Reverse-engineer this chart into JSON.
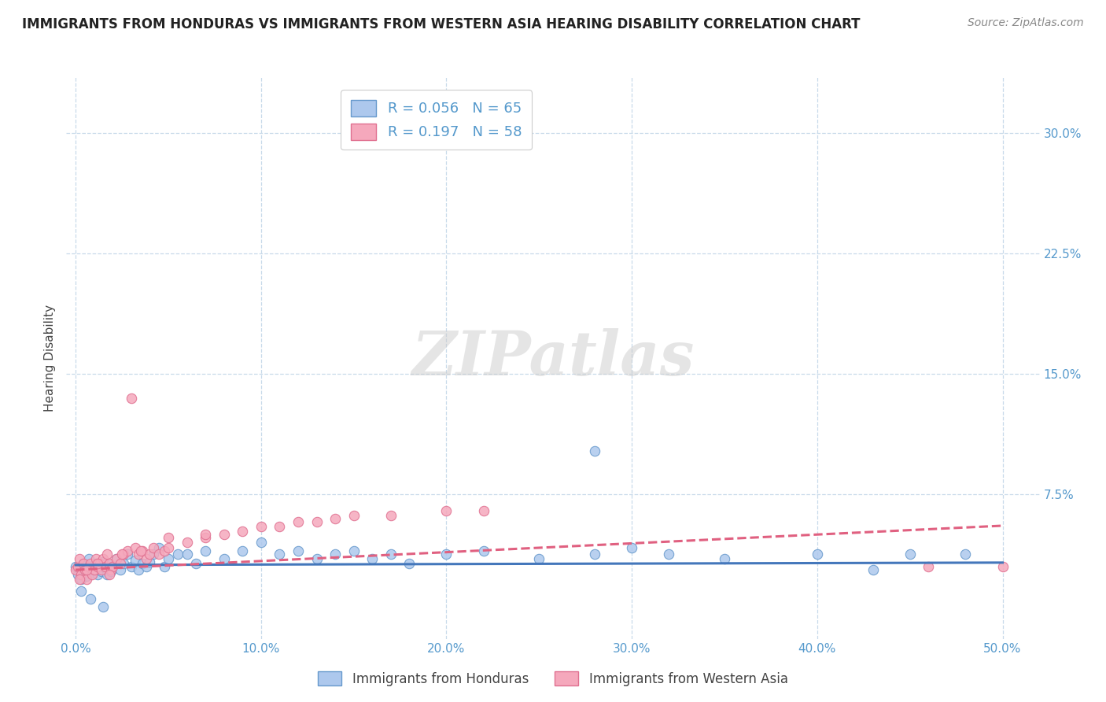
{
  "title": "IMMIGRANTS FROM HONDURAS VS IMMIGRANTS FROM WESTERN ASIA HEARING DISABILITY CORRELATION CHART",
  "source": "Source: ZipAtlas.com",
  "ylabel": "Hearing Disability",
  "x_ticks": [
    0.0,
    0.1,
    0.2,
    0.3,
    0.4,
    0.5
  ],
  "x_tick_labels": [
    "0.0%",
    "10.0%",
    "20.0%",
    "30.0%",
    "40.0%",
    "50.0%"
  ],
  "y_ticks": [
    0.0,
    0.075,
    0.15,
    0.225,
    0.3
  ],
  "y_tick_labels_right": [
    "",
    "7.5%",
    "15.0%",
    "22.5%",
    "30.0%"
  ],
  "xlim": [
    -0.005,
    0.52
  ],
  "ylim": [
    -0.015,
    0.335
  ],
  "series1_color": "#adc8ed",
  "series1_edge": "#6699cc",
  "series1_label": "Immigrants from Honduras",
  "series1_R": 0.056,
  "series1_N": 65,
  "series2_color": "#f5a8bc",
  "series2_edge": "#e07090",
  "series2_label": "Immigrants from Western Asia",
  "series2_R": 0.197,
  "series2_N": 58,
  "trend1_color": "#4477bb",
  "trend2_color": "#e06080",
  "watermark": "ZIPatlas",
  "background_color": "#ffffff",
  "grid_color": "#c8daea",
  "title_fontsize": 12,
  "axis_tick_color": "#5599cc",
  "scatter1_x": [
    0.0,
    0.001,
    0.002,
    0.003,
    0.004,
    0.005,
    0.006,
    0.007,
    0.008,
    0.009,
    0.01,
    0.011,
    0.012,
    0.013,
    0.014,
    0.015,
    0.016,
    0.017,
    0.018,
    0.019,
    0.02,
    0.022,
    0.024,
    0.026,
    0.028,
    0.03,
    0.032,
    0.034,
    0.036,
    0.038,
    0.04,
    0.042,
    0.045,
    0.048,
    0.05,
    0.055,
    0.06,
    0.065,
    0.07,
    0.08,
    0.09,
    0.1,
    0.11,
    0.12,
    0.13,
    0.14,
    0.15,
    0.16,
    0.17,
    0.18,
    0.2,
    0.22,
    0.25,
    0.28,
    0.3,
    0.32,
    0.35,
    0.4,
    0.45,
    0.48,
    0.003,
    0.008,
    0.015,
    0.28,
    0.43
  ],
  "scatter1_y": [
    0.03,
    0.025,
    0.028,
    0.022,
    0.032,
    0.028,
    0.024,
    0.035,
    0.03,
    0.026,
    0.028,
    0.032,
    0.025,
    0.03,
    0.027,
    0.033,
    0.029,
    0.025,
    0.031,
    0.027,
    0.03,
    0.035,
    0.028,
    0.032,
    0.038,
    0.03,
    0.034,
    0.028,
    0.032,
    0.03,
    0.033,
    0.038,
    0.042,
    0.03,
    0.035,
    0.038,
    0.038,
    0.032,
    0.04,
    0.035,
    0.04,
    0.045,
    0.038,
    0.04,
    0.035,
    0.038,
    0.04,
    0.035,
    0.038,
    0.032,
    0.038,
    0.04,
    0.035,
    0.038,
    0.042,
    0.038,
    0.035,
    0.038,
    0.038,
    0.038,
    0.015,
    0.01,
    0.005,
    0.102,
    0.028
  ],
  "scatter2_x": [
    0.0,
    0.001,
    0.002,
    0.003,
    0.004,
    0.005,
    0.006,
    0.007,
    0.008,
    0.009,
    0.01,
    0.011,
    0.012,
    0.013,
    0.014,
    0.015,
    0.016,
    0.017,
    0.018,
    0.019,
    0.02,
    0.022,
    0.024,
    0.026,
    0.028,
    0.03,
    0.032,
    0.034,
    0.036,
    0.038,
    0.04,
    0.042,
    0.045,
    0.048,
    0.05,
    0.06,
    0.07,
    0.08,
    0.09,
    0.1,
    0.11,
    0.12,
    0.13,
    0.14,
    0.15,
    0.17,
    0.2,
    0.22,
    0.002,
    0.006,
    0.012,
    0.018,
    0.025,
    0.035,
    0.05,
    0.07,
    0.5,
    0.46
  ],
  "scatter2_y": [
    0.028,
    0.03,
    0.035,
    0.025,
    0.032,
    0.028,
    0.022,
    0.03,
    0.032,
    0.025,
    0.028,
    0.035,
    0.03,
    0.032,
    0.028,
    0.035,
    0.03,
    0.038,
    0.032,
    0.028,
    0.03,
    0.035,
    0.032,
    0.038,
    0.04,
    0.135,
    0.042,
    0.038,
    0.04,
    0.035,
    0.038,
    0.042,
    0.038,
    0.04,
    0.042,
    0.045,
    0.048,
    0.05,
    0.052,
    0.055,
    0.055,
    0.058,
    0.058,
    0.06,
    0.062,
    0.062,
    0.065,
    0.065,
    0.022,
    0.028,
    0.032,
    0.025,
    0.038,
    0.04,
    0.048,
    0.05,
    0.03,
    0.03
  ],
  "trend1_intercept": 0.031,
  "trend1_slope": 0.003,
  "trend2_intercept": 0.028,
  "trend2_slope": 0.055
}
